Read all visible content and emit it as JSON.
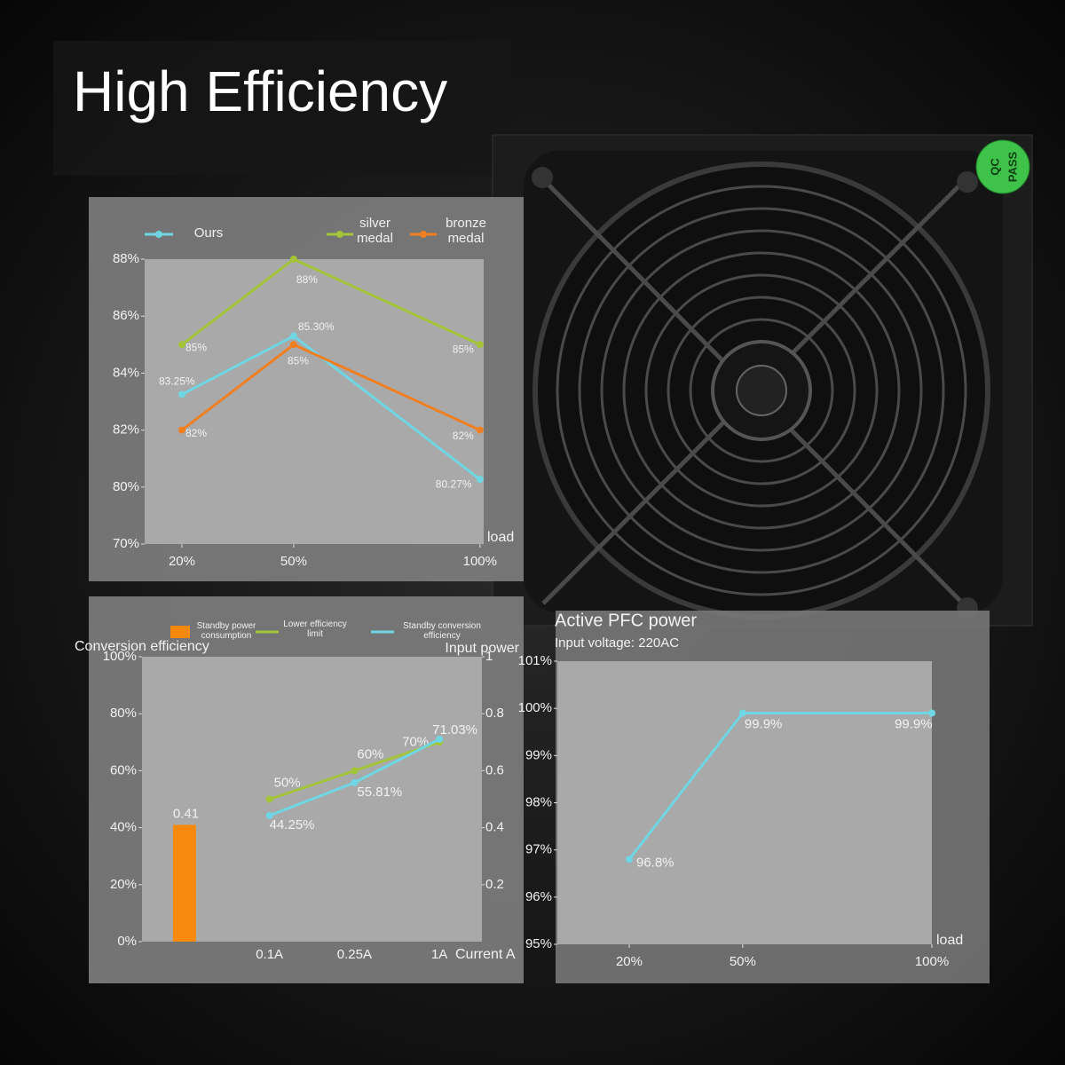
{
  "title": "High Efficiency",
  "sticker": [
    "QC",
    "PASS"
  ],
  "chart_data": [
    {
      "type": "line",
      "x": [
        20,
        50,
        100
      ],
      "xlim": [
        10,
        101
      ],
      "xticks": [
        {
          "value": 20,
          "label": "20%"
        },
        {
          "value": 50,
          "label": "50%"
        },
        {
          "value": 100,
          "label": "100%"
        }
      ],
      "xlabel": "load",
      "ylim": [
        70,
        88
      ],
      "yticks": [
        {
          "value": 70,
          "label": "70%"
        },
        {
          "value": 80,
          "label": "80%"
        },
        {
          "value": 82,
          "label": "82%"
        },
        {
          "value": 84,
          "label": "84%"
        },
        {
          "value": 86,
          "label": "86%"
        },
        {
          "value": 88,
          "label": "88%"
        }
      ],
      "grid": false,
      "series": [
        {
          "name": "Ours",
          "color": "#6fd6e4",
          "values": [
            83.25,
            85.3,
            80.27
          ],
          "value_labels": [
            "83.25%",
            "85.30%",
            "80.27%"
          ]
        },
        {
          "name": "silver medal",
          "color": "#a4c43a",
          "values": [
            85,
            88,
            85
          ],
          "value_labels": [
            "85%",
            "88%",
            "85%"
          ]
        },
        {
          "name": "bronze medal",
          "color": "#f07f22",
          "values": [
            82,
            85,
            82
          ],
          "value_labels": [
            "82%",
            "85%",
            "82%"
          ]
        }
      ]
    },
    {
      "type": "bar",
      "categories": [
        null,
        "0.1A",
        "0.25A",
        "1A"
      ],
      "xlabel": "Current A",
      "ylabel": "Conversion efficiency",
      "y2label": "Input power",
      "ylim": [
        0,
        100
      ],
      "yticks": [
        {
          "value": 0,
          "label": "0%"
        },
        {
          "value": 20,
          "label": "20%"
        },
        {
          "value": 40,
          "label": "40%"
        },
        {
          "value": 60,
          "label": "60%"
        },
        {
          "value": 80,
          "label": "80%"
        },
        {
          "value": 100,
          "label": "100%"
        }
      ],
      "y2lim": [
        0,
        1
      ],
      "y2ticks": [
        0.2,
        0.4,
        0.6,
        0.8,
        1
      ],
      "grid": false,
      "series": [
        {
          "name": "Standby power consumption",
          "type": "bar",
          "axis": "y2",
          "color": "#f7890f",
          "values": [
            0.41,
            null,
            null,
            null
          ]
        },
        {
          "name": "Lower efficiency limit",
          "type": "line",
          "color": "#a4c43a",
          "values": [
            null,
            50,
            60,
            70
          ],
          "value_labels": [
            null,
            "50%",
            "60%",
            "70%"
          ]
        },
        {
          "name": "Standby conversion efficiency",
          "type": "line",
          "color": "#6fd6e4",
          "values": [
            null,
            44.25,
            55.81,
            71.03
          ],
          "value_labels": [
            null,
            "44.25%",
            "55.81%",
            "71.03%"
          ]
        }
      ]
    },
    {
      "type": "line",
      "title": "Active PFC power",
      "subtitle": "Input voltage: 220AC",
      "x": [
        20,
        50,
        100
      ],
      "xlim": [
        1,
        100
      ],
      "xticks": [
        {
          "value": 20,
          "label": "20%"
        },
        {
          "value": 50,
          "label": "50%"
        },
        {
          "value": 100,
          "label": "100%"
        }
      ],
      "xlabel": "load",
      "ylim": [
        95,
        101
      ],
      "yticks": [
        {
          "value": 95,
          "label": "95%"
        },
        {
          "value": 96,
          "label": "96%"
        },
        {
          "value": 97,
          "label": "97%"
        },
        {
          "value": 98,
          "label": "98%"
        },
        {
          "value": 99,
          "label": "99%"
        },
        {
          "value": 100,
          "label": "100%"
        },
        {
          "value": 101,
          "label": "101%"
        }
      ],
      "grid": false,
      "series": [
        {
          "name": null,
          "color": "#6fd6e4",
          "values": [
            96.8,
            99.9,
            99.9
          ],
          "value_labels": [
            "96.8%",
            "99.9%",
            "99.9%"
          ]
        }
      ]
    }
  ]
}
